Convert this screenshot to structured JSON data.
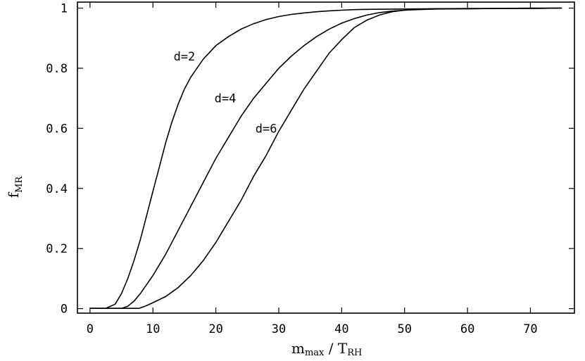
{
  "chart_data": {
    "type": "line",
    "xlabel_main": "m",
    "xlabel_main_sub": "max",
    "xlabel_sep": " / ",
    "xlabel_den": "T",
    "xlabel_den_sub": "RH",
    "ylabel_main": "f",
    "ylabel_sub": "MR",
    "xlim": [
      -2,
      77
    ],
    "ylim": [
      -0.015,
      1.02
    ],
    "x_ticks": [
      0,
      10,
      20,
      30,
      40,
      50,
      60,
      70
    ],
    "x_tick_labels": [
      "0",
      "10",
      "20",
      "30",
      "40",
      "50",
      "60",
      "70"
    ],
    "y_ticks": [
      0,
      0.2,
      0.4,
      0.6,
      0.8,
      1
    ],
    "y_tick_labels": [
      "0",
      "0.2",
      "0.4",
      "0.6",
      "0.8",
      "1"
    ],
    "grid": false,
    "series": [
      {
        "name": "d=2",
        "x": [
          0,
          2.5,
          4,
          5,
          6,
          7,
          8,
          9,
          10,
          11,
          12,
          13,
          14,
          15,
          16,
          18,
          20,
          22,
          24,
          26,
          28,
          30,
          32,
          34,
          36,
          38,
          40,
          42,
          45,
          50,
          55,
          60,
          65,
          70,
          75
        ],
        "y": [
          0.001,
          0.001,
          0.015,
          0.05,
          0.1,
          0.16,
          0.23,
          0.31,
          0.39,
          0.47,
          0.55,
          0.62,
          0.68,
          0.73,
          0.77,
          0.83,
          0.875,
          0.905,
          0.93,
          0.948,
          0.962,
          0.972,
          0.979,
          0.984,
          0.988,
          0.991,
          0.993,
          0.995,
          0.996,
          0.997,
          0.998,
          0.998,
          0.999,
          0.999,
          1.0
        ]
      },
      {
        "name": "d=4",
        "x": [
          0,
          5,
          6,
          7,
          8,
          10,
          12,
          14,
          16,
          18,
          20,
          22,
          24,
          26,
          28,
          30,
          32,
          34,
          36,
          38,
          40,
          42,
          44,
          46,
          48,
          50,
          52,
          55,
          60,
          65,
          70,
          75
        ],
        "y": [
          0.001,
          0.001,
          0.008,
          0.025,
          0.05,
          0.11,
          0.18,
          0.26,
          0.34,
          0.42,
          0.5,
          0.57,
          0.64,
          0.7,
          0.75,
          0.8,
          0.84,
          0.875,
          0.905,
          0.93,
          0.95,
          0.965,
          0.977,
          0.985,
          0.99,
          0.993,
          0.995,
          0.997,
          0.998,
          0.999,
          0.999,
          1.0
        ]
      },
      {
        "name": "d=6",
        "x": [
          0,
          7.8,
          9,
          10,
          12,
          14,
          16,
          18,
          20,
          22,
          24,
          26,
          28,
          30,
          32,
          34,
          36,
          38,
          40,
          42,
          44,
          46,
          48,
          50,
          52,
          55,
          60,
          65,
          70,
          75
        ],
        "y": [
          0.001,
          0.001,
          0.01,
          0.02,
          0.04,
          0.07,
          0.11,
          0.16,
          0.22,
          0.29,
          0.36,
          0.44,
          0.51,
          0.59,
          0.66,
          0.73,
          0.79,
          0.85,
          0.895,
          0.935,
          0.96,
          0.977,
          0.988,
          0.993,
          0.996,
          0.998,
          0.999,
          0.999,
          1.0,
          1.0
        ]
      }
    ],
    "annotations": [
      {
        "text": "d=2",
        "x": 15,
        "y": 0.84
      },
      {
        "text": "d=4",
        "x": 21.5,
        "y": 0.7
      },
      {
        "text": "d=6",
        "x": 28,
        "y": 0.6
      }
    ]
  }
}
